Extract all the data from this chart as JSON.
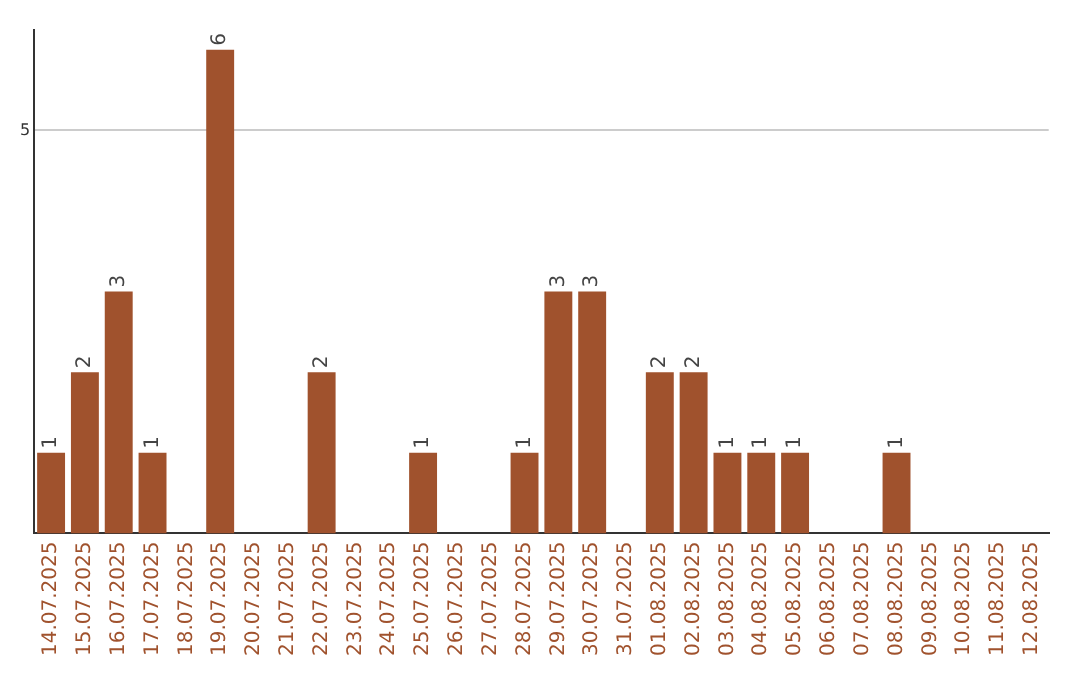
{
  "chart_data": {
    "type": "bar",
    "categories": [
      "14.07.2025",
      "15.07.2025",
      "16.07.2025",
      "17.07.2025",
      "18.07.2025",
      "19.07.2025",
      "20.07.2025",
      "21.07.2025",
      "22.07.2025",
      "23.07.2025",
      "24.07.2025",
      "25.07.2025",
      "26.07.2025",
      "27.07.2025",
      "28.07.2025",
      "29.07.2025",
      "30.07.2025",
      "31.07.2025",
      "01.08.2025",
      "02.08.2025",
      "03.08.2025",
      "04.08.2025",
      "05.08.2025",
      "06.08.2025",
      "07.08.2025",
      "08.08.2025",
      "09.08.2025",
      "10.08.2025",
      "11.08.2025",
      "12.08.2025"
    ],
    "values": [
      1,
      2,
      3,
      1,
      0,
      6,
      0,
      0,
      2,
      0,
      0,
      1,
      0,
      0,
      1,
      3,
      3,
      0,
      2,
      2,
      1,
      1,
      1,
      0,
      0,
      1,
      0,
      0,
      0,
      0
    ],
    "value_labels": [
      "1",
      "2",
      "3",
      "1",
      null,
      "6",
      null,
      null,
      "2",
      null,
      null,
      "1",
      null,
      null,
      "1",
      "3",
      "3",
      null,
      "2",
      "2",
      "1",
      "1",
      "1",
      null,
      null,
      "1",
      null,
      null,
      null,
      null
    ],
    "color": "#a0522d",
    "ylim": [
      0,
      6.25
    ],
    "yticks": [
      5
    ],
    "grid": "y",
    "legend": false
  }
}
